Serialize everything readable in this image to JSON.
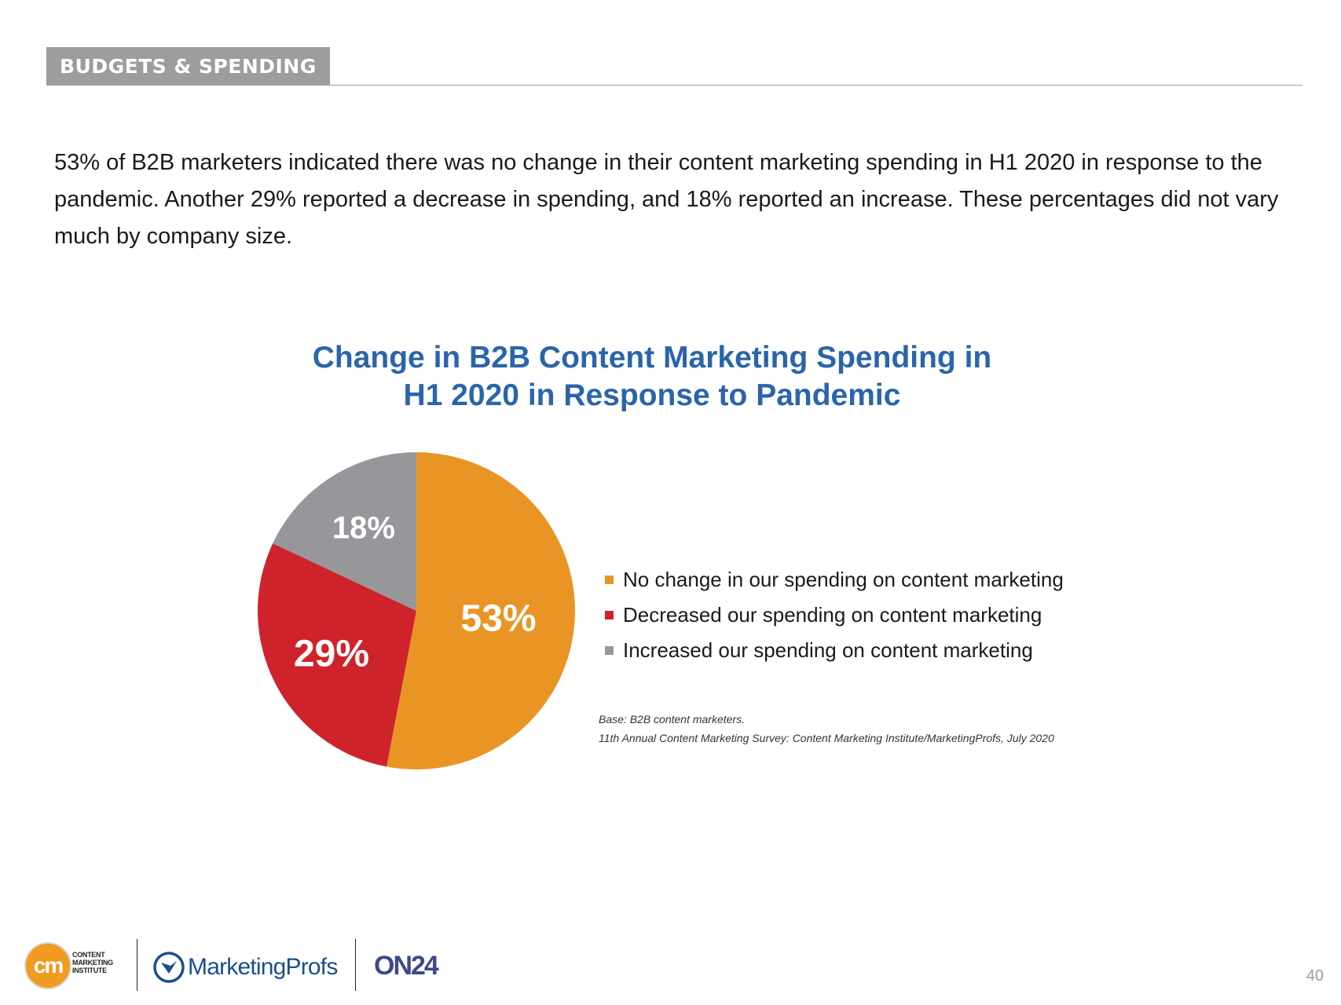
{
  "header": {
    "section_label": "BUDGETS & SPENDING"
  },
  "intro": {
    "text": "53% of B2B marketers indicated there was no change in their content marketing spending in H1 2020 in response to the pandemic. Another 29% reported a decrease in spending, and 18% reported an increase. These percentages did not vary much by company size."
  },
  "chart_data": {
    "type": "pie",
    "title_line1": "Change in B2B Content Marketing Spending in",
    "title_line2": "H1 2020 in Response to Pandemic",
    "categories": [
      "No change in our spending on content marketing",
      "Decreased our spending on content marketing",
      "Increased our spending on content marketing"
    ],
    "values": [
      53,
      29,
      18
    ],
    "labels": [
      "53%",
      "29%",
      "18%"
    ],
    "colors": [
      "#e99525",
      "#cf232b",
      "#97979b"
    ],
    "legend_position": "right",
    "start": "12 o'clock, clockwise"
  },
  "source": {
    "base": "Base: B2B content marketers.",
    "citation": "11th Annual Content Marketing Survey: Content Marketing Institute/MarketingProfs, July 2020"
  },
  "footer": {
    "cmi_mark": "cm",
    "cmi_line1": "CONTENT",
    "cmi_line2": "MARKETING",
    "cmi_line3": "INSTITUTE",
    "mprofs_name": "MarketingProfs",
    "on24_name": "ON24",
    "page_number": "40"
  }
}
